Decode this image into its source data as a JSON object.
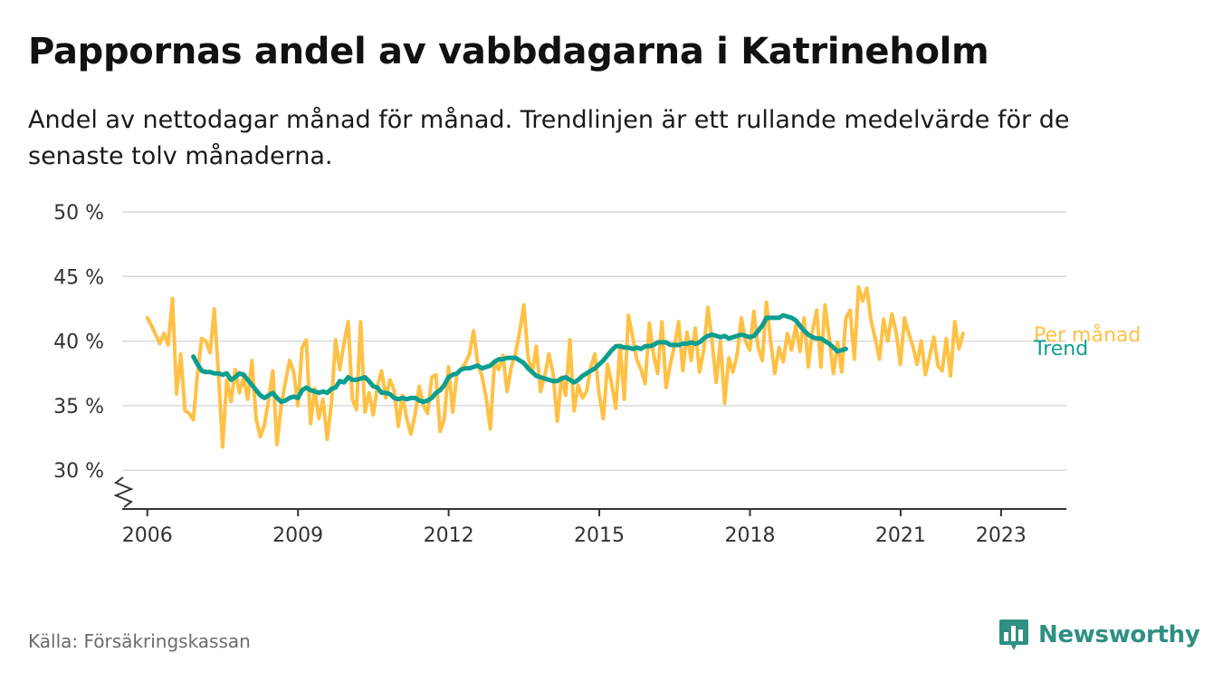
{
  "header": {
    "title": "Pappornas andel av vabbdagarna i Katrineholm",
    "subtitle": "Andel av nettodagar månad för månad. Trendlinjen är ett rullande medelvärde för de senaste tolv månaderna."
  },
  "footer": {
    "source": "Källa: Försäkringskassan",
    "brand": "Newsworthy",
    "brand_icon": "bar-chart-logo-icon"
  },
  "colors": {
    "monthly": "#FFC145",
    "trend": "#0E9E8F",
    "grid": "#d9d9d9",
    "axis": "#333333",
    "brand": "#2f8f83"
  },
  "chart_data": {
    "type": "line",
    "x_unit": "year (fractional)",
    "xlim": [
      2005.5,
      2024.3
    ],
    "ylim": [
      27,
      50
    ],
    "y_ticks": [
      30,
      35,
      40,
      45,
      50
    ],
    "y_tick_labels": [
      "30 %",
      "35 %",
      "40 %",
      "45 %",
      "50 %"
    ],
    "x_ticks": [
      2006,
      2009,
      2012,
      2015,
      2018,
      2021,
      2023
    ],
    "x_tick_labels": [
      "2006",
      "2009",
      "2012",
      "2015",
      "2018",
      "2021",
      "2023"
    ],
    "axis_break": true,
    "grid": "horizontal",
    "legend_placement": "line-end labels",
    "series": [
      {
        "name": "Per månad",
        "x_start": 2006.0,
        "x_step": 0.0833,
        "values": [
          41.8,
          41.2,
          40.5,
          39.8,
          40.6,
          39.7,
          43.3,
          35.9,
          39.0,
          34.6,
          34.4,
          33.9,
          37.5,
          40.2,
          40.0,
          39.1,
          42.5,
          37.5,
          31.8,
          37.0,
          35.3,
          37.8,
          36.0,
          37.2,
          35.5,
          38.5,
          34.0,
          32.6,
          33.5,
          35.5,
          37.7,
          32.0,
          35.0,
          36.8,
          38.5,
          37.6,
          35.0,
          39.5,
          40.1,
          33.6,
          36.3,
          34.0,
          35.5,
          32.4,
          35.2,
          40.1,
          37.8,
          39.8,
          41.5,
          35.5,
          34.7,
          41.5,
          34.5,
          36.0,
          34.3,
          36.5,
          37.7,
          35.6,
          37.0,
          36.2,
          33.4,
          35.8,
          34.0,
          32.8,
          34.3,
          36.5,
          35.0,
          34.4,
          37.2,
          37.4,
          33.0,
          34.0,
          38.0,
          34.5,
          37.5,
          37.8,
          38.3,
          39.0,
          40.8,
          38.2,
          37.3,
          35.6,
          33.2,
          38.4,
          37.8,
          38.9,
          36.1,
          38.0,
          39.0,
          40.7,
          42.8,
          38.8,
          37.5,
          39.6,
          36.1,
          37.3,
          39.0,
          37.5,
          33.8,
          37.2,
          35.8,
          40.1,
          34.6,
          36.6,
          35.6,
          36.1,
          38.0,
          39.0,
          35.9,
          34.0,
          38.2,
          36.7,
          34.8,
          39.7,
          35.5,
          42.0,
          40.4,
          38.6,
          37.8,
          36.7,
          41.4,
          39.0,
          37.5,
          41.5,
          36.4,
          38.2,
          39.6,
          41.5,
          37.7,
          40.7,
          38.5,
          41.0,
          37.6,
          39.3,
          42.6,
          40.0,
          36.8,
          40.0,
          35.2,
          38.7,
          37.6,
          39.0,
          41.8,
          40.0,
          39.3,
          42.3,
          39.5,
          38.5,
          43.0,
          40.0,
          37.5,
          39.5,
          38.4,
          40.6,
          39.3,
          41.2,
          39.2,
          41.8,
          38.0,
          40.8,
          42.4,
          38.0,
          42.8,
          40.3,
          37.5,
          39.9,
          37.6,
          41.8,
          42.4,
          38.6,
          44.2,
          43.1,
          44.1,
          41.6,
          40.2,
          38.6,
          41.7,
          40.0,
          42.1,
          40.7,
          38.2,
          41.8,
          40.6,
          39.6,
          38.2,
          40.0,
          37.4,
          38.8,
          40.3,
          38.1,
          37.7,
          40.2,
          37.3,
          41.5,
          39.4,
          40.6
        ]
      },
      {
        "name": "Trend",
        "x_start": 2006.917,
        "x_step": 0.0833,
        "values": [
          38.8,
          38.2,
          37.7,
          37.6,
          37.6,
          37.5,
          37.5,
          37.4,
          37.5,
          37.0,
          37.2,
          37.5,
          37.4,
          37.0,
          36.6,
          36.2,
          35.8,
          35.6,
          35.8,
          36.0,
          35.6,
          35.3,
          35.4,
          35.6,
          35.7,
          35.6,
          36.2,
          36.4,
          36.2,
          36.1,
          36.0,
          36.1,
          36.0,
          36.3,
          36.4,
          36.9,
          36.8,
          37.2,
          37.0,
          37.0,
          37.1,
          37.2,
          36.9,
          36.5,
          36.4,
          36.0,
          36.0,
          35.9,
          35.6,
          35.5,
          35.6,
          35.5,
          35.6,
          35.6,
          35.4,
          35.3,
          35.4,
          35.6,
          36.0,
          36.2,
          36.6,
          37.2,
          37.4,
          37.5,
          37.8,
          37.9,
          37.9,
          38.0,
          38.1,
          37.9,
          38.0,
          38.1,
          38.4,
          38.6,
          38.6,
          38.7,
          38.7,
          38.7,
          38.5,
          38.3,
          37.9,
          37.6,
          37.3,
          37.2,
          37.1,
          37.0,
          36.9,
          36.9,
          37.1,
          37.2,
          37.0,
          36.8,
          37.0,
          37.3,
          37.5,
          37.7,
          37.9,
          38.2,
          38.5,
          38.9,
          39.3,
          39.6,
          39.6,
          39.5,
          39.5,
          39.4,
          39.5,
          39.4,
          39.6,
          39.6,
          39.7,
          39.9,
          39.9,
          39.9,
          39.7,
          39.7,
          39.7,
          39.8,
          39.8,
          39.9,
          39.8,
          39.9,
          40.2,
          40.4,
          40.5,
          40.4,
          40.3,
          40.4,
          40.2,
          40.3,
          40.4,
          40.5,
          40.4,
          40.3,
          40.4,
          40.8,
          41.2,
          41.8,
          41.8,
          41.8,
          41.8,
          42.0,
          41.9,
          41.8,
          41.6,
          41.2,
          40.8,
          40.5,
          40.3,
          40.2,
          40.2,
          40.0,
          39.8,
          39.5,
          39.2,
          39.3,
          39.4
        ]
      }
    ]
  }
}
